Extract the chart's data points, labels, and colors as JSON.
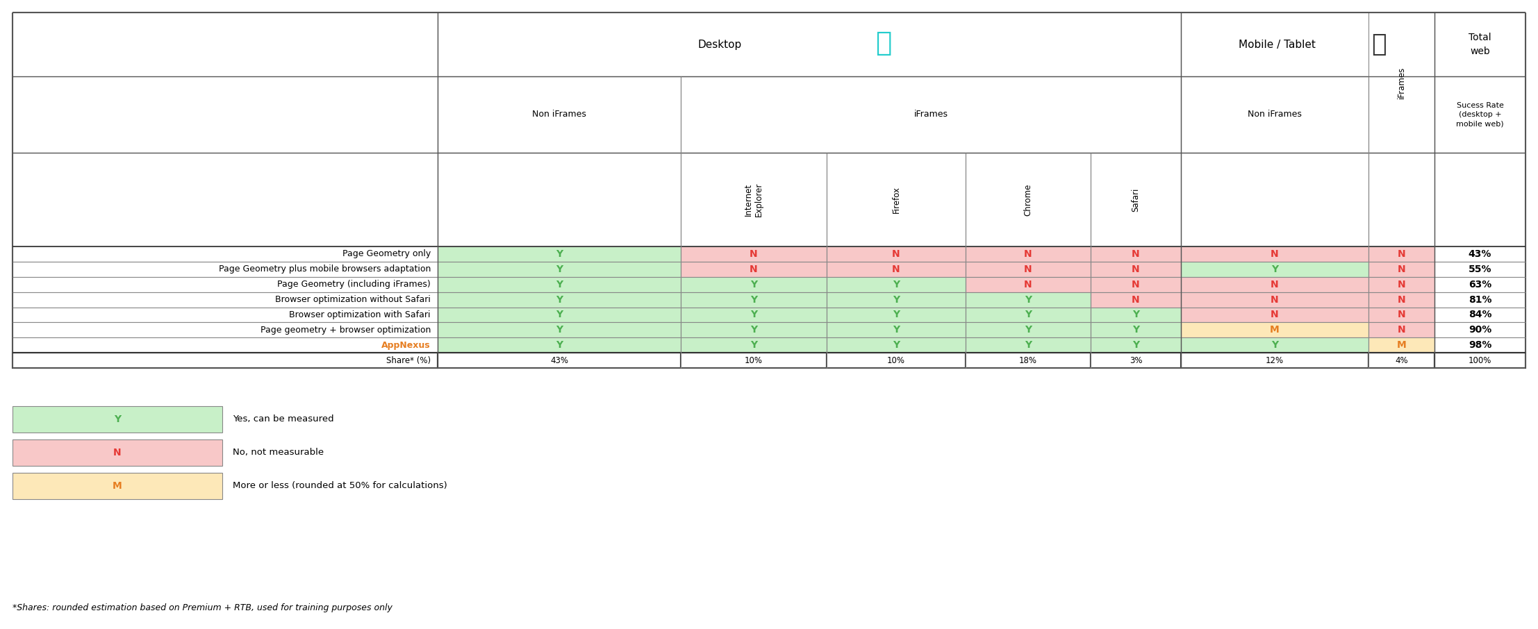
{
  "row_labels": [
    "Page Geometry only",
    "Page Geometry plus mobile browsers adaptation",
    "Page Geometry (including iFrames)",
    "Browser optimization without Safari",
    "Browser optimization with Safari",
    "Page geometry + browser optimization",
    "AppNexus",
    "Share* (%)"
  ],
  "cell_data": [
    [
      "Y",
      "N",
      "N",
      "N",
      "N",
      "N",
      "N",
      "43%"
    ],
    [
      "Y",
      "N",
      "N",
      "N",
      "N",
      "Y",
      "N",
      "55%"
    ],
    [
      "Y",
      "Y",
      "Y",
      "N",
      "N",
      "N",
      "N",
      "63%"
    ],
    [
      "Y",
      "Y",
      "Y",
      "Y",
      "N",
      "N",
      "N",
      "81%"
    ],
    [
      "Y",
      "Y",
      "Y",
      "Y",
      "Y",
      "N",
      "N",
      "84%"
    ],
    [
      "Y",
      "Y",
      "Y",
      "Y",
      "Y",
      "M",
      "N",
      "90%"
    ],
    [
      "Y",
      "Y",
      "Y",
      "Y",
      "Y",
      "Y",
      "M",
      "98%"
    ],
    [
      "43%",
      "10%",
      "10%",
      "18%",
      "3%",
      "12%",
      "4%",
      "100%"
    ]
  ],
  "cell_colors": [
    [
      "#c8f0c8",
      "#f8c8c8",
      "#f8c8c8",
      "#f8c8c8",
      "#f8c8c8",
      "#f8c8c8",
      "#f8c8c8",
      "#ffffff"
    ],
    [
      "#c8f0c8",
      "#f8c8c8",
      "#f8c8c8",
      "#f8c8c8",
      "#f8c8c8",
      "#c8f0c8",
      "#f8c8c8",
      "#ffffff"
    ],
    [
      "#c8f0c8",
      "#c8f0c8",
      "#c8f0c8",
      "#f8c8c8",
      "#f8c8c8",
      "#f8c8c8",
      "#f8c8c8",
      "#ffffff"
    ],
    [
      "#c8f0c8",
      "#c8f0c8",
      "#c8f0c8",
      "#c8f0c8",
      "#f8c8c8",
      "#f8c8c8",
      "#f8c8c8",
      "#ffffff"
    ],
    [
      "#c8f0c8",
      "#c8f0c8",
      "#c8f0c8",
      "#c8f0c8",
      "#c8f0c8",
      "#f8c8c8",
      "#f8c8c8",
      "#ffffff"
    ],
    [
      "#c8f0c8",
      "#c8f0c8",
      "#c8f0c8",
      "#c8f0c8",
      "#c8f0c8",
      "#fde8b8",
      "#f8c8c8",
      "#ffffff"
    ],
    [
      "#c8f0c8",
      "#c8f0c8",
      "#c8f0c8",
      "#c8f0c8",
      "#c8f0c8",
      "#c8f0c8",
      "#fde8b8",
      "#ffffff"
    ],
    [
      "#ffffff",
      "#ffffff",
      "#ffffff",
      "#ffffff",
      "#ffffff",
      "#ffffff",
      "#ffffff",
      "#ffffff"
    ]
  ],
  "cell_text_colors": [
    [
      "#4caf50",
      "#e53935",
      "#e53935",
      "#e53935",
      "#e53935",
      "#e53935",
      "#e53935",
      "#000000"
    ],
    [
      "#4caf50",
      "#e53935",
      "#e53935",
      "#e53935",
      "#e53935",
      "#4caf50",
      "#e53935",
      "#000000"
    ],
    [
      "#4caf50",
      "#4caf50",
      "#4caf50",
      "#e53935",
      "#e53935",
      "#e53935",
      "#e53935",
      "#000000"
    ],
    [
      "#4caf50",
      "#4caf50",
      "#4caf50",
      "#4caf50",
      "#e53935",
      "#e53935",
      "#e53935",
      "#000000"
    ],
    [
      "#4caf50",
      "#4caf50",
      "#4caf50",
      "#4caf50",
      "#4caf50",
      "#e53935",
      "#e53935",
      "#000000"
    ],
    [
      "#4caf50",
      "#4caf50",
      "#4caf50",
      "#4caf50",
      "#4caf50",
      "#e67e22",
      "#e53935",
      "#000000"
    ],
    [
      "#4caf50",
      "#4caf50",
      "#4caf50",
      "#4caf50",
      "#4caf50",
      "#4caf50",
      "#e67e22",
      "#000000"
    ],
    [
      "#000000",
      "#000000",
      "#000000",
      "#000000",
      "#000000",
      "#000000",
      "#000000",
      "#000000"
    ]
  ],
  "appnexus_color": "#e67e22",
  "legend_items": [
    {
      "label": "Y",
      "text": "Yes, can be measured",
      "bg": "#c8f0c8",
      "fg": "#4caf50"
    },
    {
      "label": "N",
      "text": "No, not measurable",
      "bg": "#f8c8c8",
      "fg": "#e53935"
    },
    {
      "label": "M",
      "text": "More or less (rounded at 50% for calculations)",
      "bg": "#fde8b8",
      "fg": "#e67e22"
    }
  ],
  "footnote": "*Shares: rounded estimation based on Premium + RTB, used for training purposes only",
  "bg_color": "#ffffff",
  "border_color": "#888888",
  "thick_border_color": "#333333"
}
